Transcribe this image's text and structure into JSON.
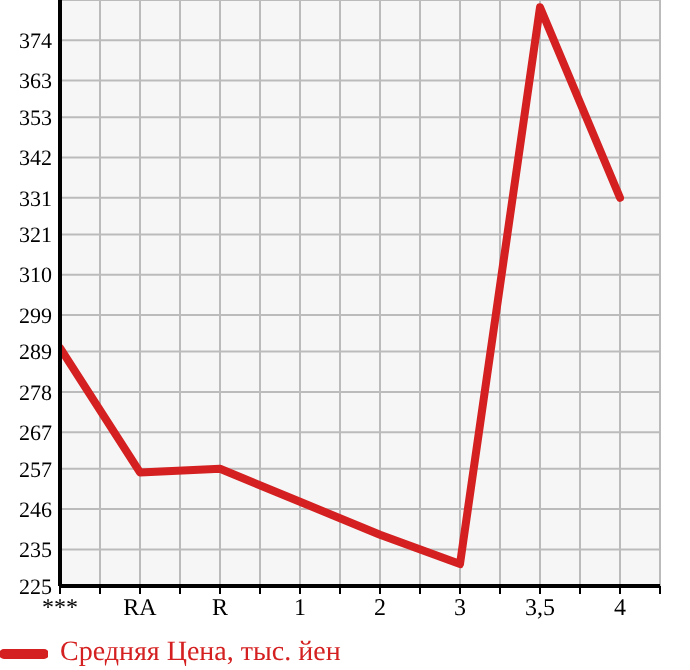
{
  "chart_data": {
    "type": "line",
    "categories": [
      "***",
      "RA",
      "R",
      "1",
      "2",
      "3",
      "3,5",
      "4"
    ],
    "series": [
      {
        "name": "Средняя Цена, тыс. йен",
        "color": "#d42020",
        "values": [
          290,
          256,
          257,
          248,
          239,
          231,
          383,
          331
        ]
      }
    ],
    "ylim": [
      225,
      385
    ],
    "yticks": [
      225,
      235,
      246,
      257,
      267,
      278,
      289,
      299,
      310,
      321,
      331,
      342,
      353,
      363,
      374
    ],
    "grid": true,
    "legend": "bottom left",
    "marker": "none",
    "line_style": "solid"
  }
}
